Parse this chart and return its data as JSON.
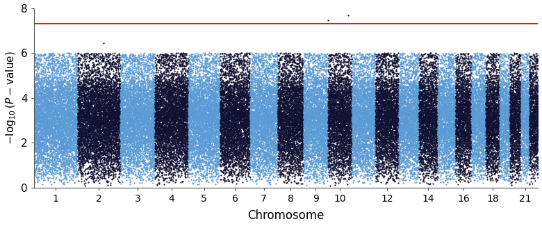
{
  "chromosomes": [
    1,
    2,
    3,
    4,
    5,
    6,
    7,
    8,
    9,
    10,
    11,
    12,
    13,
    14,
    15,
    16,
    17,
    18,
    19,
    20,
    21,
    22
  ],
  "chr_labels": [
    1,
    2,
    3,
    4,
    5,
    6,
    7,
    8,
    9,
    10,
    12,
    14,
    16,
    18,
    21
  ],
  "chr_sizes": [
    249,
    243,
    198,
    191,
    181,
    171,
    159,
    146,
    141,
    136,
    135,
    133,
    115,
    107,
    102,
    90,
    83,
    78,
    59,
    63,
    48,
    51
  ],
  "significance_line": 7.3,
  "significance_color": "#cc2222",
  "color_odd": "#5b9bd5",
  "color_even": "#111133",
  "ylim": [
    0,
    8
  ],
  "yticks": [
    0,
    2,
    4,
    6,
    8
  ],
  "ylabel": "$-\\log_{10}(P-\\mathrm{value})$",
  "xlabel": "Chromosome",
  "seed": 42,
  "snp_density": 25,
  "marker_size": 2.5,
  "special_peaks": {
    "10": 7.7,
    "2": 6.5,
    "21": 6.0,
    "7": 5.8,
    "9": 5.5
  }
}
